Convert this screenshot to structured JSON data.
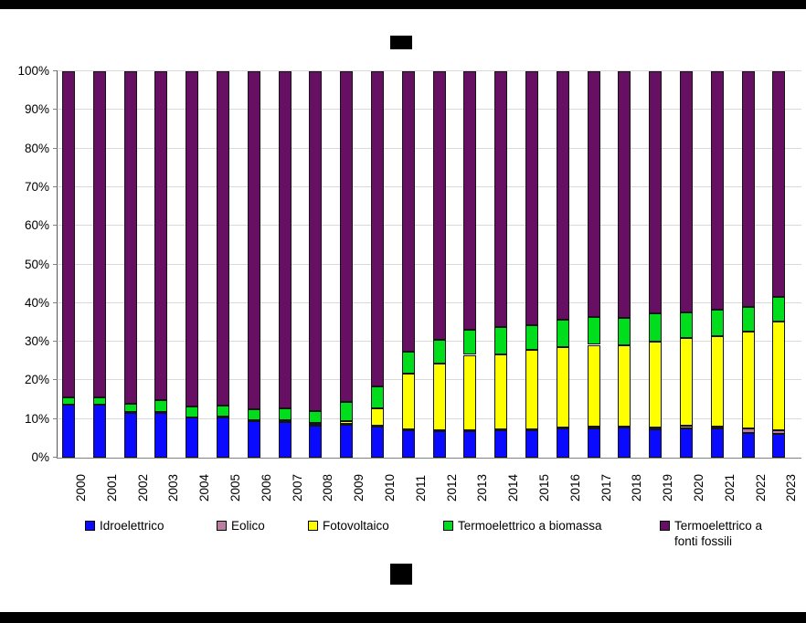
{
  "chart_data": {
    "type": "bar",
    "stacked": true,
    "units": "percent",
    "title": "",
    "xlabel": "",
    "ylabel": "",
    "ylim": [
      0,
      100
    ],
    "grid": true,
    "legend_position": "bottom",
    "y_ticks": [
      "0%",
      "10%",
      "20%",
      "30%",
      "40%",
      "50%",
      "60%",
      "70%",
      "80%",
      "90%",
      "100%"
    ],
    "categories": [
      "2000",
      "2001",
      "2002",
      "2003",
      "2004",
      "2005",
      "2006",
      "2007",
      "2008",
      "2009",
      "2010",
      "2011",
      "2012",
      "2013",
      "2014",
      "2015",
      "2016",
      "2017",
      "2018",
      "2019",
      "2020",
      "2021",
      "2022",
      "2023"
    ],
    "series": [
      {
        "name": "Idroelettrico",
        "color": "#0a0aff",
        "values": [
          13.6,
          13.6,
          11.7,
          11.7,
          10.3,
          10.4,
          9.5,
          9.3,
          8.3,
          8.6,
          8.1,
          7.2,
          6.9,
          6.9,
          7.0,
          7.0,
          7.5,
          7.6,
          7.7,
          7.4,
          7.6,
          7.6,
          6.5,
          6.1
        ]
      },
      {
        "name": "Eolico",
        "color": "#bb7da2",
        "values": [
          0.1,
          0.1,
          0.1,
          0.1,
          0.1,
          0.1,
          0.1,
          0.1,
          0.1,
          0.1,
          0.2,
          0.2,
          0.3,
          0.3,
          0.3,
          0.3,
          0.4,
          0.4,
          0.4,
          0.5,
          0.6,
          0.5,
          1.0,
          1.1
        ]
      },
      {
        "name": "Fotovoltaico",
        "color": "#ffff00",
        "values": [
          0.0,
          0.0,
          0.0,
          0.1,
          0.1,
          0.1,
          0.1,
          0.2,
          0.7,
          0.8,
          4.4,
          14.3,
          17.1,
          19.4,
          19.5,
          20.7,
          20.8,
          21.2,
          20.9,
          22.2,
          22.8,
          23.3,
          25.2,
          28.1
        ]
      },
      {
        "name": "Termoelettrico a biomassa",
        "color": "#00dd1c",
        "values": [
          2.0,
          1.8,
          2.2,
          2.9,
          2.7,
          2.9,
          2.9,
          3.1,
          3.0,
          4.9,
          5.7,
          5.7,
          6.3,
          6.6,
          6.9,
          6.3,
          6.9,
          7.1,
          7.1,
          7.2,
          6.7,
          6.8,
          6.3,
          6.3
        ]
      },
      {
        "name": "Termoelettrico a fonti fossili",
        "color": "#670f63",
        "values": [
          84.3,
          84.5,
          86.0,
          85.2,
          86.8,
          86.5,
          87.4,
          87.3,
          87.9,
          85.6,
          81.6,
          72.6,
          69.4,
          66.8,
          66.3,
          65.7,
          64.4,
          63.7,
          63.9,
          62.7,
          62.3,
          61.8,
          61.0,
          58.4
        ]
      }
    ]
  }
}
